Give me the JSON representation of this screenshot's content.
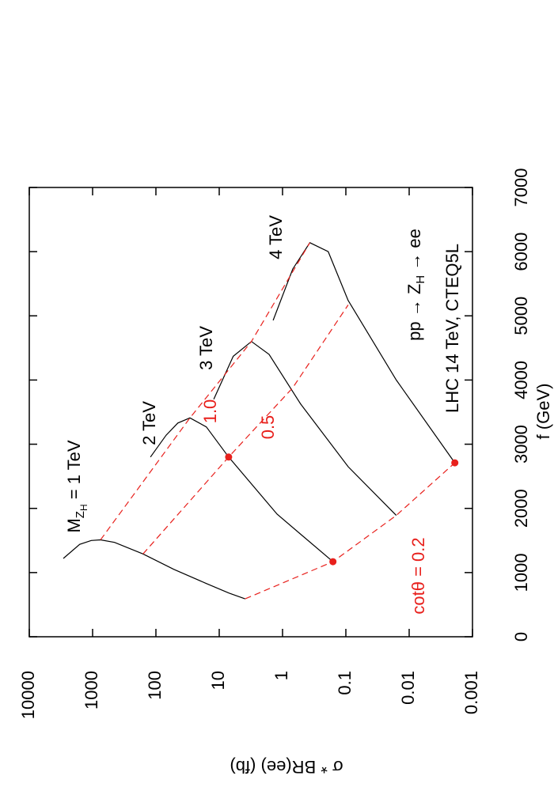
{
  "chart_data": {
    "type": "line",
    "x_label": "f  (GeV)",
    "y_label": "σ * BR(ee)  (fb)",
    "xlim": [
      0,
      7000
    ],
    "xticks": [
      0,
      1000,
      2000,
      3000,
      4000,
      5000,
      6000,
      7000
    ],
    "ylim": [
      0.001,
      10000
    ],
    "yticks": [
      0.001,
      0.01,
      0.1,
      1,
      10,
      100,
      1000,
      10000
    ],
    "ylog": true,
    "series": [
      {
        "color": "#000000",
        "dash": false,
        "x": [
          1220,
          1440,
          1500,
          1510,
          1470,
          1290,
          1050,
          830,
          680,
          590
        ],
        "values": [
          2900,
          1600,
          1050,
          750,
          450,
          160,
          52,
          16,
          7,
          3.9
        ]
      },
      {
        "color": "#000000",
        "dash": false,
        "x": [
          2800,
          3140,
          3330,
          3410,
          3270,
          2800,
          1910,
          1170
        ],
        "values": [
          122,
          69,
          45,
          29,
          16,
          7.1,
          1.22,
          0.16
        ]
      },
      {
        "color": "#000000",
        "dash": false,
        "x": [
          3700,
          4370,
          4600,
          4400,
          3630,
          2650,
          1890
        ],
        "values": [
          12.2,
          6,
          3.1,
          1.63,
          0.52,
          0.092,
          0.016
        ]
      },
      {
        "color": "#000000",
        "dash": false,
        "x": [
          4930,
          5730,
          6140,
          6000,
          5240,
          4000,
          2710
        ],
        "values": [
          1.41,
          0.69,
          0.37,
          0.19,
          0.092,
          0.016,
          0.0019
        ]
      },
      {
        "color": "#e8201c",
        "dash": true,
        "x": [
          1510,
          3410,
          4600,
          6140
        ],
        "values": [
          750,
          29,
          3.1,
          0.37
        ]
      },
      {
        "color": "#e8201c",
        "dash": true,
        "x": [
          1290,
          2800,
          3880,
          5170
        ],
        "values": [
          160,
          7.1,
          0.69,
          0.092
        ]
      },
      {
        "color": "#e8201c",
        "dash": true,
        "x": [
          590,
          1170,
          1890,
          2710
        ],
        "values": [
          3.9,
          0.16,
          0.016,
          0.0019
        ]
      }
    ],
    "points": {
      "color": "#e8201c",
      "x": [
        2800,
        1170,
        2710
      ],
      "values": [
        7.1,
        0.16,
        0.0019
      ]
    },
    "annotations": [
      {
        "parts": [
          "M",
          "Z",
          "H",
          " = 1 TeV"
        ]
      },
      {
        "text": "2 TeV"
      },
      {
        "text": "3 TeV"
      },
      {
        "text": "4 TeV"
      },
      {
        "text": "1.0"
      },
      {
        "text": "0.5"
      },
      {
        "text": "cotθ = 0.2"
      },
      {
        "parts": [
          "pp → Z",
          "H",
          " → ee"
        ]
      },
      {
        "text": "LHC 14 TeV, CTEQ5L"
      }
    ]
  }
}
